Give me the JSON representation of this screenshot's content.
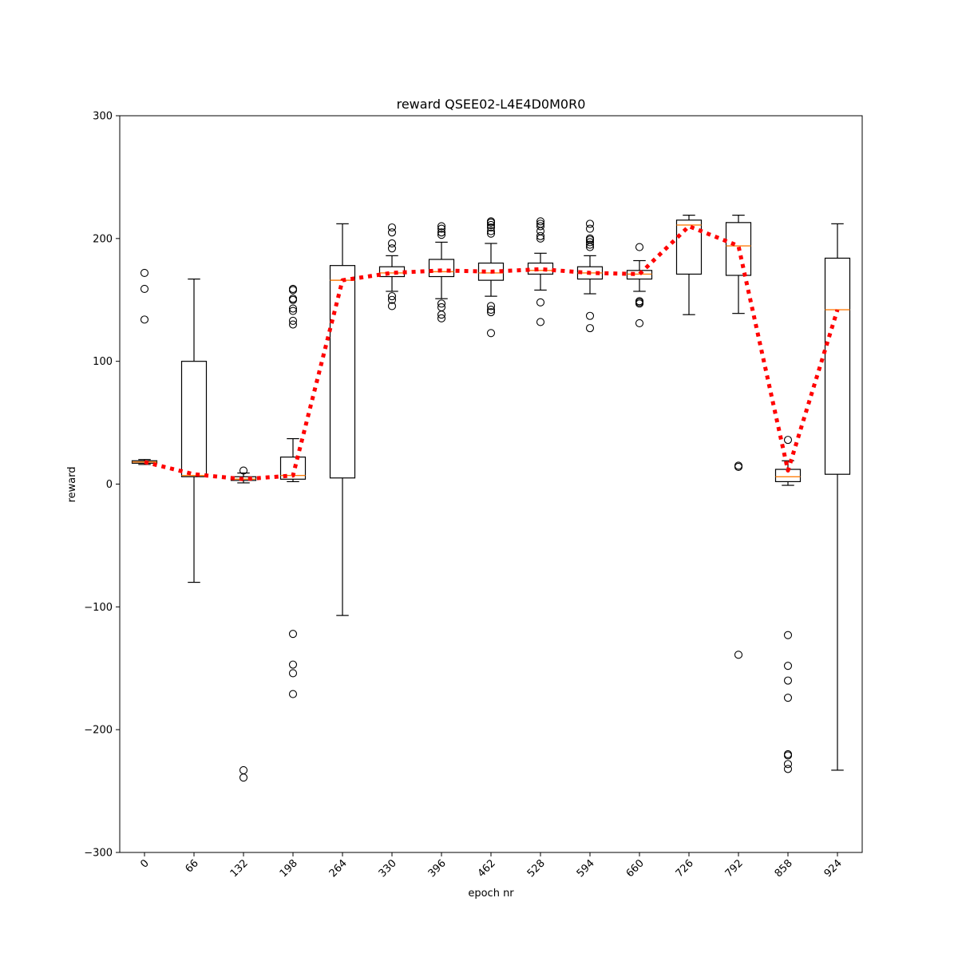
{
  "chart_data": {
    "type": "box",
    "title": "reward QSEE02-L4E4D0M0R0",
    "xlabel": "epoch nr",
    "ylabel": "reward",
    "ylim": [
      -300,
      300
    ],
    "yticks": [
      -300,
      -200,
      -100,
      0,
      100,
      200,
      300
    ],
    "ytick_labels": [
      "−300",
      "−200",
      "−100",
      "0",
      "100",
      "200",
      "300"
    ],
    "categories": [
      "0",
      "66",
      "132",
      "198",
      "264",
      "330",
      "396",
      "462",
      "528",
      "594",
      "660",
      "726",
      "792",
      "858",
      "924"
    ],
    "grid": false,
    "box_color": "#000000",
    "median_color": "#ff7f0e",
    "mean_line_color": "#ff0000",
    "boxes": [
      {
        "whisker_low": 16,
        "q1": 17,
        "median": 18,
        "q3": 19,
        "whisker_high": 20,
        "fliers": [
          134,
          159,
          172
        ]
      },
      {
        "whisker_low": -80,
        "q1": 6,
        "median": 7,
        "q3": 100,
        "whisker_high": 167,
        "fliers": []
      },
      {
        "whisker_low": 1,
        "q1": 3,
        "median": 4,
        "q3": 6,
        "whisker_high": 9,
        "fliers": [
          11,
          -233,
          -239
        ]
      },
      {
        "whisker_low": 2,
        "q1": 4,
        "median": 7,
        "q3": 22,
        "whisker_high": 37,
        "fliers": [
          130,
          133,
          141,
          143,
          150,
          151,
          158,
          159,
          -122,
          -147,
          -154,
          -171
        ]
      },
      {
        "whisker_low": -107,
        "q1": 5,
        "median": 166,
        "q3": 178,
        "whisker_high": 212,
        "fliers": []
      },
      {
        "whisker_low": 157,
        "q1": 169,
        "median": 172,
        "q3": 177,
        "whisker_high": 186,
        "fliers": [
          145,
          150,
          153,
          192,
          196,
          205,
          209
        ]
      },
      {
        "whisker_low": 151,
        "q1": 169,
        "median": 173,
        "q3": 183,
        "whisker_high": 197,
        "fliers": [
          135,
          138,
          144,
          147,
          203,
          205,
          208,
          210
        ]
      },
      {
        "whisker_low": 153,
        "q1": 166,
        "median": 172,
        "q3": 180,
        "whisker_high": 196,
        "fliers": [
          123,
          140,
          142,
          145,
          204,
          206,
          209,
          211,
          213,
          214
        ]
      },
      {
        "whisker_low": 158,
        "q1": 171,
        "median": 174,
        "q3": 180,
        "whisker_high": 188,
        "fliers": [
          132,
          148,
          200,
          202,
          206,
          210,
          212,
          214
        ]
      },
      {
        "whisker_low": 155,
        "q1": 167,
        "median": 172,
        "q3": 177,
        "whisker_high": 186,
        "fliers": [
          127,
          137,
          193,
          195,
          197,
          199,
          200,
          208,
          212
        ]
      },
      {
        "whisker_low": 157,
        "q1": 167,
        "median": 171,
        "q3": 174,
        "whisker_high": 182,
        "fliers": [
          131,
          147,
          148,
          149,
          193
        ]
      },
      {
        "whisker_low": 138,
        "q1": 171,
        "median": 211,
        "q3": 215,
        "whisker_high": 219,
        "fliers": []
      },
      {
        "whisker_low": 139,
        "q1": 170,
        "median": 194,
        "q3": 213,
        "whisker_high": 219,
        "fliers": [
          14,
          15,
          -139
        ]
      },
      {
        "whisker_low": -1,
        "q1": 2,
        "median": 6,
        "q3": 12,
        "whisker_high": 19,
        "fliers": [
          36,
          -123,
          -148,
          -160,
          -174,
          -220,
          -221,
          -228,
          -232
        ]
      },
      {
        "whisker_low": -233,
        "q1": 8,
        "median": 142,
        "q3": 184,
        "whisker_high": 212,
        "fliers": []
      }
    ],
    "mean_line": {
      "style": "dotted",
      "values": [
        18,
        8,
        4,
        7,
        166,
        172,
        174,
        173,
        175,
        172,
        171,
        210,
        194,
        11,
        142
      ]
    }
  }
}
